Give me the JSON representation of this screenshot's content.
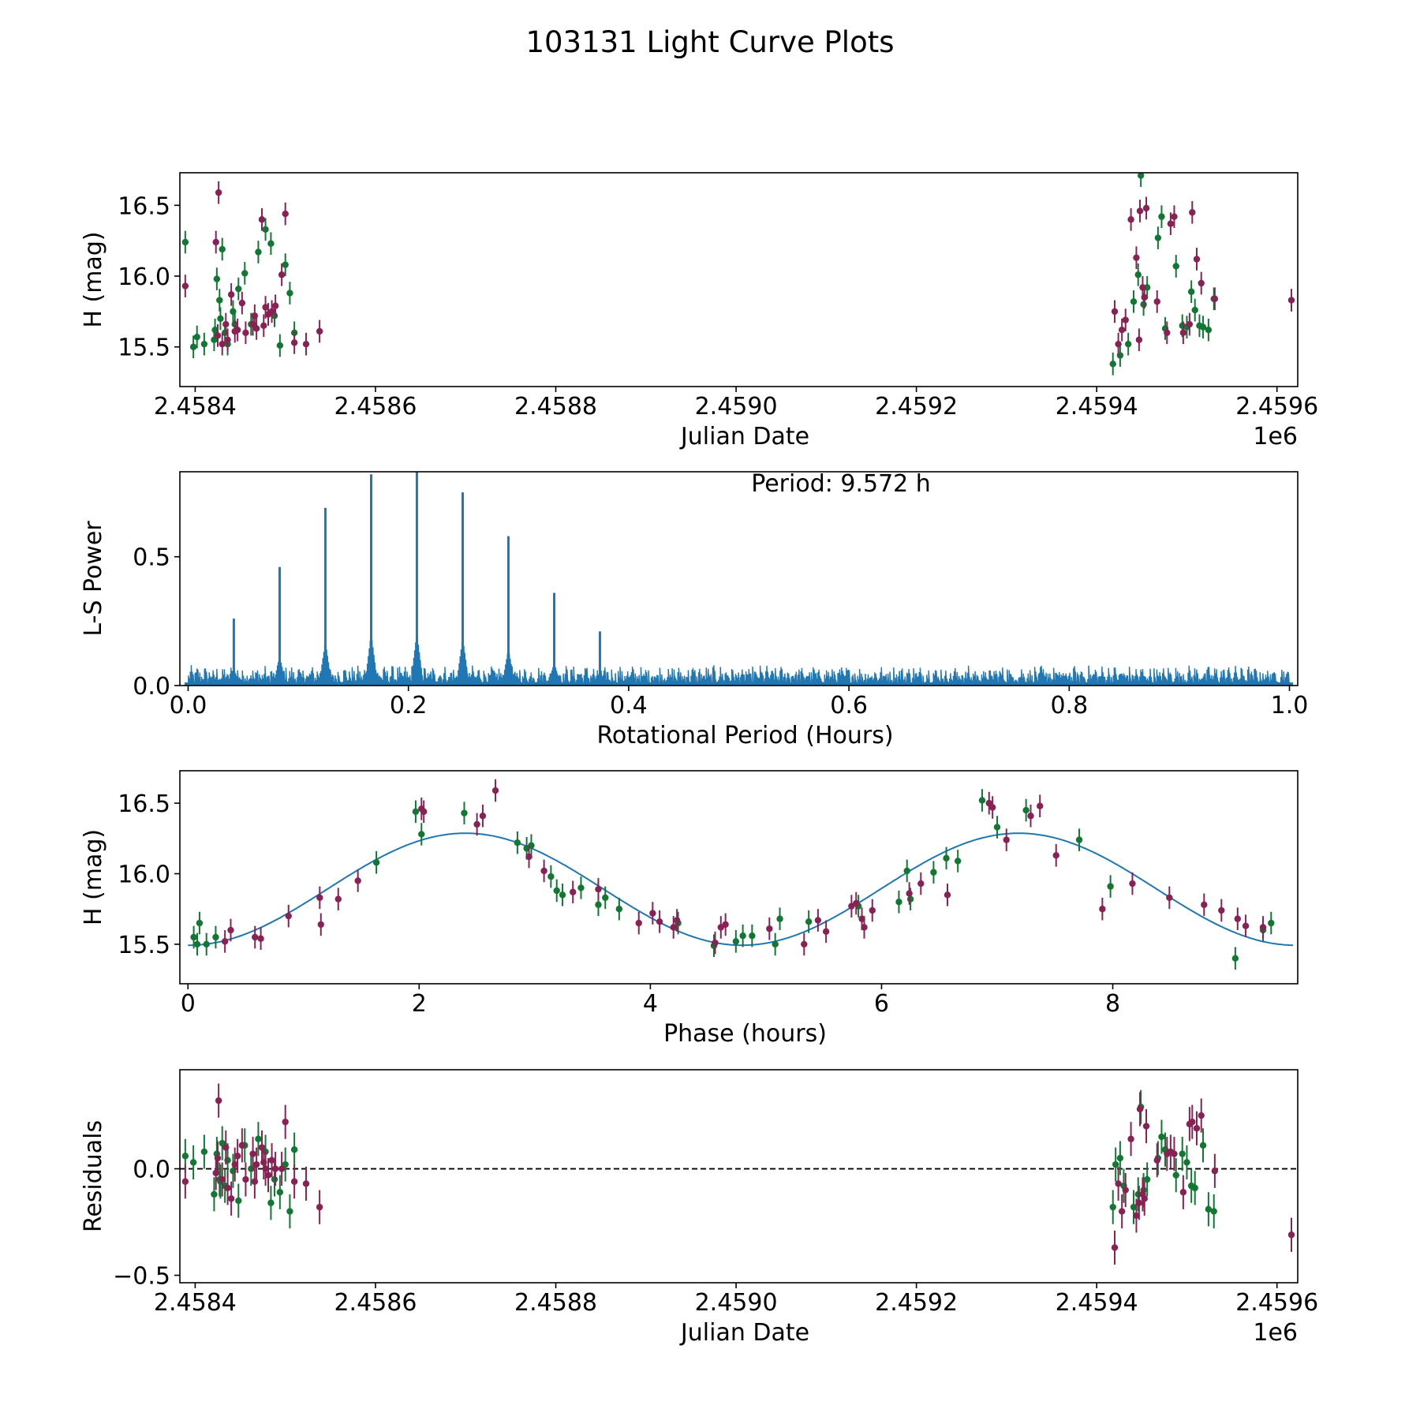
{
  "title": "103131 Light Curve Plots",
  "colors": {
    "green": "#117733",
    "maroon": "#882255",
    "blue": "#1f77b4",
    "axis": "#000000"
  },
  "chart_data": [
    {
      "id": "lightcurve",
      "type": "scatter",
      "xlabel": "Julian Date",
      "ylabel": "H (mag)",
      "xlim": [
        2458383,
        2459623
      ],
      "ylim": [
        15.22,
        16.73
      ],
      "x_ticks": [
        2458400,
        2458600,
        2458800,
        2459000,
        2459200,
        2459400,
        2459600
      ],
      "x_tick_labels": [
        "2.4584",
        "2.4586",
        "2.4588",
        "2.4590",
        "2.4592",
        "2.4594",
        "2.4596"
      ],
      "offset_label": "1e6",
      "y_ticks": [
        15.5,
        16.0,
        16.5
      ],
      "y_tick_labels": [
        "15.5",
        "16.0",
        "16.5"
      ],
      "series": [
        {
          "name": "green filter",
          "color": "#117733",
          "err": 0.08,
          "x": [
            2458389,
            2458421,
            2458424,
            2458427,
            2458430,
            2458433,
            2458436,
            2458442,
            2458448,
            2458455,
            2458462,
            2458470,
            2458478,
            2458484,
            2458488,
            2458494,
            2458500,
            2458505,
            2458510,
            2458398,
            2458402,
            2458410,
            2458422,
            2458428,
            2458444,
            2459418,
            2459426,
            2459435,
            2459441,
            2459446,
            2459449,
            2459452,
            2459456,
            2459468,
            2459472,
            2459476,
            2459488,
            2459495,
            2459500,
            2459505,
            2459509,
            2459514,
            2459518,
            2459524,
            2459530
          ],
          "y": [
            16.24,
            15.55,
            15.98,
            15.83,
            16.19,
            15.6,
            15.52,
            15.75,
            15.91,
            16.02,
            15.66,
            16.17,
            16.33,
            16.23,
            15.72,
            15.51,
            16.08,
            15.88,
            15.6,
            15.5,
            15.57,
            15.52,
            15.62,
            15.7,
            15.66,
            15.38,
            15.44,
            15.52,
            15.82,
            16.01,
            16.71,
            15.8,
            15.92,
            16.27,
            16.42,
            15.63,
            16.07,
            15.65,
            15.64,
            15.89,
            15.76,
            15.65,
            15.64,
            15.62,
            15.84
          ]
        },
        {
          "name": "maroon filter",
          "color": "#882255",
          "err": 0.08,
          "x": [
            2458389,
            2458423,
            2458426,
            2458430,
            2458434,
            2458440,
            2458447,
            2458452,
            2458456,
            2458464,
            2458468,
            2458474,
            2458478,
            2458481,
            2458485,
            2458489,
            2458496,
            2458500,
            2458510,
            2458523,
            2458538,
            2458425,
            2458436,
            2458444,
            2458466,
            2458476,
            2459420,
            2459424,
            2459428,
            2459432,
            2459438,
            2459444,
            2459448,
            2459451,
            2459455,
            2459478,
            2459482,
            2459486,
            2459496,
            2459503,
            2459506,
            2459511,
            2459516,
            2459531,
            2459616,
            2459447,
            2459453,
            2459467
          ],
          "y": [
            15.93,
            16.24,
            16.59,
            15.52,
            15.66,
            15.87,
            15.62,
            15.81,
            15.6,
            15.66,
            15.63,
            16.4,
            15.78,
            15.73,
            15.75,
            15.79,
            16.01,
            16.44,
            15.53,
            15.52,
            15.61,
            15.58,
            15.55,
            15.61,
            15.72,
            15.65,
            15.75,
            15.52,
            15.62,
            15.69,
            16.4,
            16.13,
            16.46,
            15.92,
            16.48,
            15.6,
            16.37,
            16.42,
            15.6,
            15.66,
            16.45,
            16.12,
            15.95,
            15.84,
            15.83,
            15.55,
            15.85,
            15.82
          ]
        }
      ]
    },
    {
      "id": "periodogram",
      "type": "line",
      "xlabel": "Rotational Period (Hours)",
      "ylabel": "L-S Power",
      "annotation": "Period: 9.572 h",
      "xlim": [
        -0.0075,
        1.0075
      ],
      "ylim": [
        0.0,
        0.83
      ],
      "x_ticks": [
        0.0,
        0.2,
        0.4,
        0.6,
        0.8,
        1.0
      ],
      "x_tick_labels": [
        "0.0",
        "0.2",
        "0.4",
        "0.6",
        "0.8",
        "1.0"
      ],
      "y_ticks": [
        0.0,
        0.5
      ],
      "y_tick_labels": [
        "0.0",
        "0.5"
      ],
      "color": "#1f77b4",
      "noise_floor": 0.08,
      "peaks": {
        "x": [
          0.0415,
          0.0831,
          0.1246,
          0.1662,
          0.2077,
          0.2493,
          0.2908,
          0.3324,
          0.3739
        ],
        "y": [
          0.26,
          0.46,
          0.69,
          0.82,
          0.83,
          0.75,
          0.58,
          0.36,
          0.21
        ]
      }
    },
    {
      "id": "phasefold",
      "type": "scatter",
      "xlabel": "Phase (hours)",
      "ylabel": "H (mag)",
      "xlim": [
        -0.07,
        9.6
      ],
      "ylim": [
        15.22,
        16.73
      ],
      "x_ticks": [
        0,
        2,
        4,
        6,
        8
      ],
      "x_tick_labels": [
        "0",
        "2",
        "4",
        "6",
        "8"
      ],
      "y_ticks": [
        15.5,
        16.0,
        16.5
      ],
      "y_tick_labels": [
        "15.5",
        "16.0",
        "16.5"
      ],
      "model": {
        "type": "sine",
        "mean": 15.89,
        "amplitude": 0.397,
        "period": 4.786,
        "phase_of_max": 2.4,
        "color": "#1f77b4"
      },
      "series": [
        {
          "name": "green filter",
          "color": "#117733",
          "err": 0.08,
          "x": [
            0.05,
            0.08,
            0.1,
            0.16,
            0.24,
            1.63,
            1.97,
            2.02,
            2.39,
            2.85,
            2.93,
            2.97,
            3.14,
            3.19,
            3.24,
            3.4,
            3.55,
            3.61,
            3.73,
            4.24,
            4.55,
            4.74,
            4.8,
            4.88,
            5.08,
            5.12,
            5.37,
            5.8,
            6.15,
            6.22,
            6.25,
            6.45,
            6.56,
            6.66,
            6.87,
            7.0,
            7.25,
            7.71,
            7.98,
            9.06,
            9.3,
            9.37
          ],
          "y": [
            15.55,
            15.5,
            15.65,
            15.5,
            15.55,
            16.08,
            16.44,
            16.28,
            16.43,
            16.22,
            16.18,
            16.2,
            15.98,
            15.88,
            15.85,
            15.9,
            15.78,
            15.83,
            15.75,
            15.65,
            15.49,
            15.52,
            15.56,
            15.56,
            15.5,
            15.68,
            15.66,
            15.77,
            15.8,
            16.02,
            15.82,
            16.01,
            16.11,
            16.09,
            16.52,
            16.33,
            16.45,
            16.24,
            15.91,
            15.4,
            15.6,
            15.65
          ]
        },
        {
          "name": "maroon filter",
          "color": "#882255",
          "err": 0.08,
          "x": [
            0.32,
            0.37,
            0.58,
            0.63,
            0.87,
            1.14,
            1.15,
            1.3,
            1.47,
            2.02,
            2.04,
            2.5,
            2.55,
            2.66,
            2.95,
            3.08,
            3.33,
            3.55,
            3.9,
            4.02,
            4.08,
            4.2,
            4.23,
            4.56,
            4.61,
            4.65,
            5.03,
            5.33,
            5.45,
            5.52,
            5.74,
            5.78,
            5.83,
            5.85,
            5.92,
            6.24,
            6.34,
            6.57,
            6.93,
            6.96,
            7.08,
            7.29,
            7.37,
            7.51,
            7.91,
            8.17,
            8.49,
            8.79,
            8.94,
            9.08,
            9.15,
            9.3
          ],
          "y": [
            15.52,
            15.6,
            15.55,
            15.54,
            15.7,
            15.83,
            15.64,
            15.82,
            15.95,
            16.46,
            16.44,
            16.35,
            16.41,
            16.59,
            16.12,
            16.02,
            15.87,
            15.89,
            15.65,
            15.72,
            15.66,
            15.62,
            15.67,
            15.51,
            15.62,
            15.64,
            15.61,
            15.5,
            15.67,
            15.59,
            15.77,
            15.79,
            15.68,
            15.62,
            15.74,
            15.86,
            15.93,
            15.85,
            16.5,
            16.47,
            16.24,
            16.41,
            16.48,
            16.13,
            15.75,
            15.93,
            15.83,
            15.78,
            15.74,
            15.68,
            15.63,
            15.62
          ]
        }
      ]
    },
    {
      "id": "residuals",
      "type": "scatter",
      "xlabel": "Julian Date",
      "ylabel": "Residuals",
      "xlim": [
        2458383,
        2459623
      ],
      "ylim": [
        -0.535,
        0.465
      ],
      "x_ticks": [
        2458400,
        2458600,
        2458800,
        2459000,
        2459200,
        2459400,
        2459600
      ],
      "x_tick_labels": [
        "2.4584",
        "2.4586",
        "2.4588",
        "2.4590",
        "2.4592",
        "2.4594",
        "2.4596"
      ],
      "offset_label": "1e6",
      "y_ticks": [
        -0.5,
        0.0
      ],
      "y_tick_labels": [
        "−0.5",
        "0.0"
      ],
      "zero_line": true,
      "series": [
        {
          "name": "green filter",
          "color": "#117733",
          "err": 0.08,
          "x": [
            2458389,
            2458421,
            2458424,
            2458427,
            2458430,
            2458433,
            2458436,
            2458442,
            2458448,
            2458455,
            2458462,
            2458470,
            2458478,
            2458484,
            2458488,
            2458494,
            2458500,
            2458505,
            2458510,
            2458398,
            2458410,
            2458428,
            2459418,
            2459421,
            2459426,
            2459430,
            2459441,
            2459446,
            2459449,
            2459452,
            2459456,
            2459468,
            2459472,
            2459476,
            2459488,
            2459495,
            2459500,
            2459505,
            2459509,
            2459518,
            2459524,
            2459530
          ],
          "y": [
            0.06,
            -0.12,
            0.07,
            -0.05,
            0.12,
            -0.08,
            0.04,
            -0.01,
            -0.15,
            0.11,
            0.0,
            0.14,
            0.08,
            -0.16,
            -0.05,
            -0.11,
            0.02,
            -0.2,
            0.09,
            0.03,
            0.08,
            -0.06,
            -0.18,
            0.02,
            0.05,
            -0.08,
            -0.18,
            -0.12,
            0.29,
            -0.1,
            -0.05,
            0.05,
            0.15,
            0.09,
            -0.03,
            0.07,
            0.03,
            -0.08,
            -0.09,
            0.11,
            -0.19,
            -0.2
          ]
        },
        {
          "name": "maroon filter",
          "color": "#882255",
          "err": 0.08,
          "x": [
            2458389,
            2458423,
            2458426,
            2458430,
            2458434,
            2458440,
            2458447,
            2458452,
            2458456,
            2458464,
            2458468,
            2458474,
            2458478,
            2458481,
            2458485,
            2458489,
            2458496,
            2458500,
            2458510,
            2458523,
            2458538,
            2458425,
            2458436,
            2458444,
            2458466,
            2458476,
            2459420,
            2459424,
            2459428,
            2459432,
            2459438,
            2459444,
            2459448,
            2459451,
            2459455,
            2459478,
            2459482,
            2459486,
            2459496,
            2459503,
            2459506,
            2459511,
            2459516,
            2459531,
            2459616,
            2459447,
            2459453,
            2459467
          ],
          "y": [
            -0.06,
            -0.02,
            0.32,
            -0.05,
            0.1,
            -0.14,
            0.06,
            0.11,
            -0.05,
            0.07,
            0.02,
            0.1,
            0.0,
            -0.03,
            0.04,
            0.0,
            0.0,
            0.22,
            -0.06,
            -0.07,
            -0.18,
            0.05,
            -0.09,
            0.02,
            -0.06,
            0.03,
            -0.37,
            -0.07,
            -0.2,
            -0.1,
            0.14,
            -0.22,
            0.28,
            -0.12,
            0.2,
            0.07,
            0.08,
            0.07,
            -0.11,
            0.21,
            0.22,
            0.19,
            0.25,
            -0.01,
            -0.31,
            -0.16,
            -0.14,
            0.04
          ]
        }
      ]
    }
  ]
}
